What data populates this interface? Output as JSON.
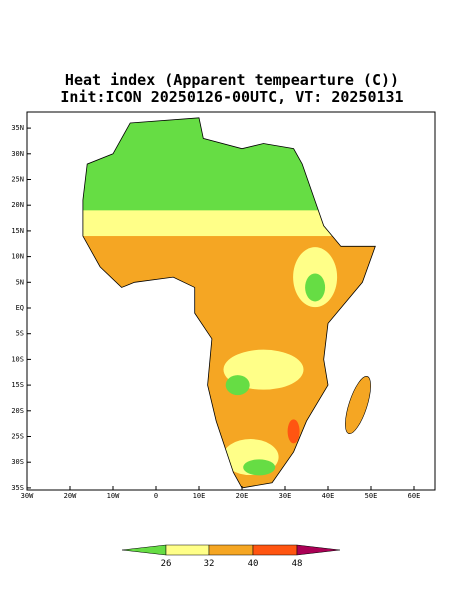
{
  "header": {
    "title": "Heat index (Apparent tempearture (C))",
    "subtitle": "Init:ICON 20250126-00UTC, VT: 20250131"
  },
  "axes": {
    "lat_labels": [
      "35N",
      "30N",
      "25N",
      "20N",
      "15N",
      "10N",
      "5N",
      "EQ",
      "5S",
      "10S",
      "15S",
      "20S",
      "25S",
      "30S",
      "35S"
    ],
    "lon_labels": [
      "30W",
      "20W",
      "10W",
      "0",
      "10E",
      "20E",
      "30E",
      "40E",
      "50E",
      "60E"
    ]
  },
  "colorbar": {
    "levels": [
      26,
      32,
      40,
      48
    ],
    "colors": [
      "#66dd44",
      "#ffff88",
      "#f5a623",
      "#ff5511",
      "#aa0055"
    ]
  }
}
